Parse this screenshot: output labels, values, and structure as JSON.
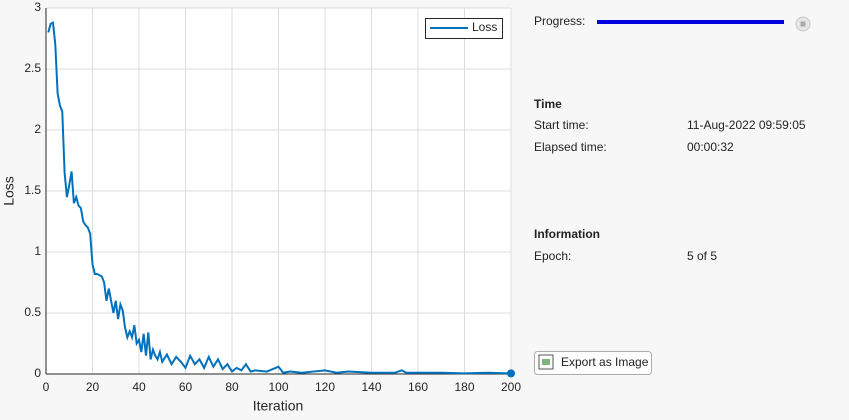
{
  "chart_data": {
    "type": "line",
    "x_label": "Iteration",
    "y_label": "Loss",
    "x": [
      1,
      2,
      3,
      4,
      5,
      6,
      7,
      8,
      9,
      10,
      11,
      12,
      13,
      14,
      15,
      16,
      17,
      18,
      19,
      20,
      21,
      22,
      24,
      25,
      26,
      27,
      28,
      29,
      30,
      31,
      32,
      33,
      34,
      35,
      36,
      37,
      38,
      39,
      40,
      41,
      42,
      43,
      44,
      45,
      46,
      47,
      48,
      49,
      50,
      52,
      54,
      56,
      58,
      60,
      62,
      64,
      66,
      68,
      70,
      72,
      74,
      76,
      78,
      80,
      82,
      84,
      86,
      88,
      90,
      95,
      100,
      102,
      105,
      110,
      115,
      120,
      125,
      130,
      140,
      150,
      153,
      155,
      160,
      170,
      180,
      190,
      200
    ],
    "series": [
      {
        "name": "Loss",
        "color": "#0072bd",
        "values": [
          2.8,
          2.87,
          2.88,
          2.7,
          2.3,
          2.2,
          2.15,
          1.65,
          1.45,
          1.55,
          1.66,
          1.4,
          1.45,
          1.38,
          1.36,
          1.25,
          1.22,
          1.2,
          1.15,
          0.9,
          0.82,
          0.82,
          0.8,
          0.75,
          0.6,
          0.7,
          0.6,
          0.5,
          0.6,
          0.45,
          0.57,
          0.52,
          0.38,
          0.3,
          0.35,
          0.3,
          0.4,
          0.25,
          0.28,
          0.18,
          0.33,
          0.15,
          0.34,
          0.12,
          0.2,
          0.15,
          0.12,
          0.18,
          0.1,
          0.16,
          0.08,
          0.14,
          0.1,
          0.05,
          0.15,
          0.08,
          0.12,
          0.05,
          0.14,
          0.06,
          0.12,
          0.04,
          0.08,
          0.02,
          0.05,
          0.03,
          0.08,
          0.02,
          0.03,
          0.02,
          0.06,
          0.01,
          0.02,
          0.01,
          0.02,
          0.03,
          0.01,
          0.02,
          0.01,
          0.01,
          0.03,
          0.01,
          0.01,
          0.01,
          0.005,
          0.01,
          0.005
        ]
      }
    ],
    "xlim": [
      0,
      200
    ],
    "xticks": [
      0,
      20,
      40,
      60,
      80,
      100,
      120,
      140,
      160,
      180,
      200
    ],
    "ylim": [
      0,
      3
    ],
    "yticks": [
      0,
      0.5,
      1,
      1.5,
      2,
      2.5,
      3
    ],
    "grid": true,
    "legend": "top-right"
  },
  "panel": {
    "progress_label": "Progress:",
    "time_heading": "Time",
    "time_rows": [
      [
        "Start time:",
        "11-Aug-2022 09:59:05"
      ],
      [
        "Elapsed time:",
        "00:00:32"
      ]
    ],
    "info_heading": "Information",
    "info_rows": [
      [
        "Epoch:",
        "5 of 5"
      ]
    ],
    "export_button": "Export as Image"
  }
}
